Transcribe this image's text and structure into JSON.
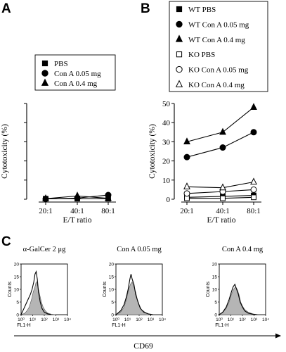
{
  "panels": {
    "a": "A",
    "b": "B",
    "c": "C"
  },
  "chart_data": [
    {
      "type": "line",
      "id": "A",
      "categories": [
        "20:1",
        "40:1",
        "80:1"
      ],
      "xlabel": "E/T ratio",
      "ylabel": "Cytotoxicity (%)",
      "ylim": [
        0,
        50
      ],
      "yticks": [],
      "legend": "top",
      "series": [
        {
          "name": "PBS",
          "marker": "square",
          "filled": true,
          "values": [
            0.3,
            0.3,
            0.3
          ]
        },
        {
          "name": "Con A 0.05 mg",
          "marker": "circle",
          "filled": true,
          "values": [
            0.2,
            0.6,
            2.2
          ]
        },
        {
          "name": "Con A 0.4 mg",
          "marker": "triangle",
          "filled": true,
          "values": [
            0.3,
            1.7,
            0.5
          ]
        }
      ]
    },
    {
      "type": "line",
      "id": "B",
      "categories": [
        "20:1",
        "40:1",
        "80:1"
      ],
      "xlabel": "E/T ratio",
      "ylabel": "Cytotoxicity (%)",
      "ylim": [
        0,
        50
      ],
      "yticks": [
        "0",
        "10",
        "20",
        "30",
        "40",
        "50"
      ],
      "legend": "top",
      "series": [
        {
          "name": "WT PBS",
          "marker": "square",
          "filled": true,
          "values": [
            1.0,
            1.5,
            2.0
          ]
        },
        {
          "name": "WT Con A 0.05 mg",
          "marker": "circle",
          "filled": true,
          "values": [
            22,
            27,
            35
          ]
        },
        {
          "name": "WT Con A 0.4 mg",
          "marker": "triangle",
          "filled": true,
          "values": [
            30,
            35,
            48
          ]
        },
        {
          "name": "KO PBS",
          "marker": "square",
          "filled": false,
          "values": [
            0.5,
            0.5,
            1.0
          ]
        },
        {
          "name": "KO Con A 0.05 mg",
          "marker": "circle",
          "filled": false,
          "values": [
            3,
            4,
            5
          ]
        },
        {
          "name": "KO Con A 0.4 mg",
          "marker": "triangle",
          "filled": false,
          "values": [
            6.5,
            6,
            9
          ]
        }
      ]
    },
    {
      "type": "area",
      "id": "C",
      "xlabel_common": "CD69",
      "histograms": [
        {
          "title": "α-GalCer 2 μg",
          "xlabel": "FL1-H",
          "ylabel": "Counts",
          "yticks": [
            "0",
            "5",
            "10",
            "15",
            "20"
          ],
          "xticks": [
            "10⁰",
            "10¹",
            "10²",
            "10³",
            "10⁴"
          ],
          "ylim": [
            0,
            20
          ],
          "xlim": [
            0,
            4
          ],
          "filled": [
            [
              0,
              0
            ],
            [
              0.3,
              0.5
            ],
            [
              0.5,
              1.5
            ],
            [
              0.7,
              3
            ],
            [
              0.9,
              6
            ],
            [
              1.05,
              9
            ],
            [
              1.2,
              11
            ],
            [
              1.3,
              13
            ],
            [
              1.4,
              12
            ],
            [
              1.5,
              10
            ],
            [
              1.6,
              8
            ],
            [
              1.75,
              5
            ],
            [
              1.9,
              3
            ],
            [
              2.1,
              1.5
            ],
            [
              2.3,
              0.6
            ],
            [
              2.6,
              0.2
            ],
            [
              3,
              0
            ]
          ],
          "outline": [
            [
              0,
              0
            ],
            [
              0.2,
              2
            ],
            [
              0.4,
              4
            ],
            [
              0.6,
              6
            ],
            [
              0.8,
              8
            ],
            [
              0.95,
              10
            ],
            [
              1.1,
              13
            ],
            [
              1.2,
              16
            ],
            [
              1.3,
              17
            ],
            [
              1.4,
              14
            ],
            [
              1.5,
              9
            ],
            [
              1.65,
              5
            ],
            [
              1.8,
              2.5
            ],
            [
              2.0,
              1
            ],
            [
              2.3,
              0.3
            ],
            [
              2.6,
              0
            ]
          ]
        },
        {
          "title": "Con A 0.05 mg",
          "xlabel": "FL1-H",
          "ylabel": "Counts",
          "yticks": [
            "0",
            "5",
            "10",
            "15",
            "20"
          ],
          "xticks": [
            "10⁰",
            "10¹",
            "10²",
            "10³",
            "10⁴"
          ],
          "ylim": [
            0,
            20
          ],
          "xlim": [
            0,
            4
          ],
          "filled": [
            [
              0,
              0
            ],
            [
              0.4,
              1
            ],
            [
              0.7,
              3
            ],
            [
              0.9,
              6
            ],
            [
              1.1,
              10
            ],
            [
              1.25,
              12
            ],
            [
              1.4,
              13
            ],
            [
              1.55,
              11
            ],
            [
              1.7,
              9
            ],
            [
              1.85,
              6
            ],
            [
              2.0,
              4
            ],
            [
              2.2,
              2
            ],
            [
              2.5,
              1
            ],
            [
              2.8,
              0.3
            ],
            [
              3.2,
              0
            ]
          ],
          "outline": [
            [
              0,
              0
            ],
            [
              0.4,
              1.5
            ],
            [
              0.7,
              4
            ],
            [
              0.9,
              7
            ],
            [
              1.05,
              10
            ],
            [
              1.2,
              14
            ],
            [
              1.3,
              16
            ],
            [
              1.4,
              14
            ],
            [
              1.55,
              12
            ],
            [
              1.7,
              8
            ],
            [
              1.9,
              5
            ],
            [
              2.1,
              2.5
            ],
            [
              2.4,
              1
            ],
            [
              2.8,
              0.3
            ],
            [
              3.2,
              0
            ]
          ]
        },
        {
          "title": "Con A 0.4 mg",
          "xlabel": "FL1-H",
          "ylabel": "Counts",
          "yticks": [
            "0",
            "5",
            "10",
            "15",
            "20"
          ],
          "xticks": [
            "10⁰",
            "10¹",
            "10²",
            "10³",
            "10⁴"
          ],
          "ylim": [
            0,
            20
          ],
          "xlim": [
            0,
            4
          ],
          "filled": [
            [
              0,
              0
            ],
            [
              0.3,
              0.8
            ],
            [
              0.6,
              2.5
            ],
            [
              0.85,
              5
            ],
            [
              1.05,
              8
            ],
            [
              1.25,
              10
            ],
            [
              1.4,
              11
            ],
            [
              1.55,
              10
            ],
            [
              1.7,
              8
            ],
            [
              1.85,
              5
            ],
            [
              2.0,
              3.5
            ],
            [
              2.2,
              2
            ],
            [
              2.5,
              1
            ],
            [
              2.9,
              0.3
            ],
            [
              3.3,
              0
            ]
          ],
          "outline": [
            [
              0,
              0
            ],
            [
              0.3,
              1
            ],
            [
              0.6,
              3
            ],
            [
              0.85,
              6
            ],
            [
              1.05,
              9
            ],
            [
              1.2,
              11
            ],
            [
              1.35,
              12
            ],
            [
              1.5,
              10
            ],
            [
              1.65,
              8
            ],
            [
              1.8,
              5
            ],
            [
              2.0,
              3
            ],
            [
              2.2,
              1.5
            ],
            [
              2.5,
              0.6
            ],
            [
              2.9,
              0.2
            ],
            [
              3.3,
              0
            ]
          ]
        }
      ]
    }
  ]
}
